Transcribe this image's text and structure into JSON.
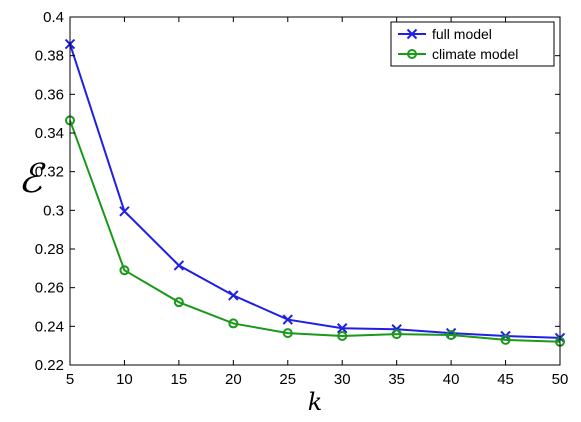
{
  "chart_data": {
    "type": "line",
    "x": [
      5,
      10,
      15,
      20,
      25,
      30,
      35,
      40,
      45,
      50
    ],
    "xlabel": "k",
    "ylabel": "ℰ",
    "xlim": [
      5,
      50
    ],
    "ylim": [
      0.22,
      0.4
    ],
    "x_ticks": [
      "5",
      "10",
      "15",
      "20",
      "25",
      "30",
      "35",
      "40",
      "45",
      "50"
    ],
    "y_ticks": [
      "0.22",
      "0.24",
      "0.26",
      "0.28",
      "0.3",
      "0.32",
      "0.34",
      "0.36",
      "0.38",
      "0.4"
    ],
    "grid": false,
    "legend_position": "top-right",
    "series": [
      {
        "name": "full model",
        "color": "#1f1fe6",
        "marker": "x",
        "values": [
          0.386,
          0.2995,
          0.2715,
          0.256,
          0.2435,
          0.239,
          0.2385,
          0.2365,
          0.235,
          0.234
        ]
      },
      {
        "name": "climate model",
        "color": "#1a991a",
        "marker": "o",
        "values": [
          0.3465,
          0.269,
          0.2525,
          0.2415,
          0.2365,
          0.235,
          0.236,
          0.2355,
          0.233,
          0.232
        ]
      }
    ]
  }
}
